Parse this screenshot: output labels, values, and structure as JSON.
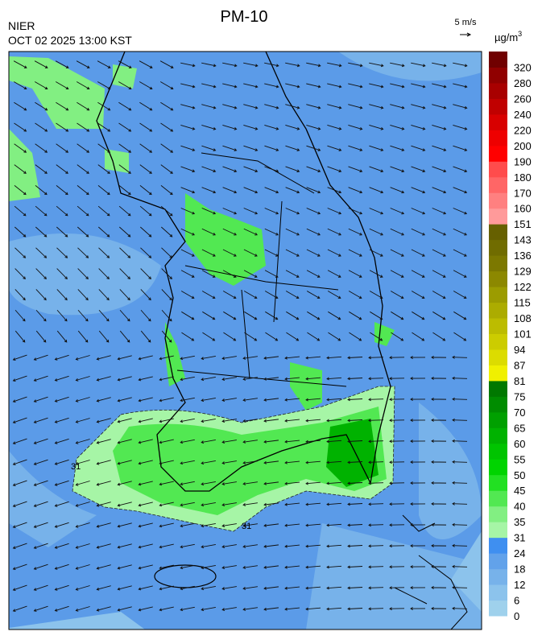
{
  "header": {
    "title": "PM-10",
    "agency": "NIER",
    "datetime": "OCT 02 2025 13:00 KST",
    "wind_scale": "5 m/s"
  },
  "legend": {
    "unit": "µg/m",
    "unit_power": "3",
    "ticks": [
      0,
      6,
      12,
      18,
      24,
      31,
      35,
      40,
      45,
      50,
      55,
      60,
      65,
      70,
      75,
      81,
      87,
      94,
      101,
      108,
      115,
      122,
      129,
      136,
      143,
      151,
      160,
      170,
      180,
      190,
      200,
      220,
      240,
      260,
      280,
      320
    ],
    "colors": [
      "#9fd1ec",
      "#8cc3ec",
      "#77b2ea",
      "#62a2ea",
      "#3f8ff0",
      "#a6f5a6",
      "#82ef82",
      "#52e852",
      "#22e022",
      "#00d400",
      "#00c400",
      "#00b200",
      "#00a000",
      "#008c00",
      "#007800",
      "#f0f000",
      "#dcdc00",
      "#cccc00",
      "#bcbc00",
      "#acac00",
      "#9c9c00",
      "#8c8800",
      "#7c7800",
      "#706c00",
      "#666000",
      "#ff9a9a",
      "#ff8080",
      "#ff6666",
      "#ff4c4c",
      "#ff0000",
      "#ee0000",
      "#d80000",
      "#c00000",
      "#a80000",
      "#900000",
      "#700000"
    ]
  },
  "map": {
    "contour_label": "31"
  }
}
